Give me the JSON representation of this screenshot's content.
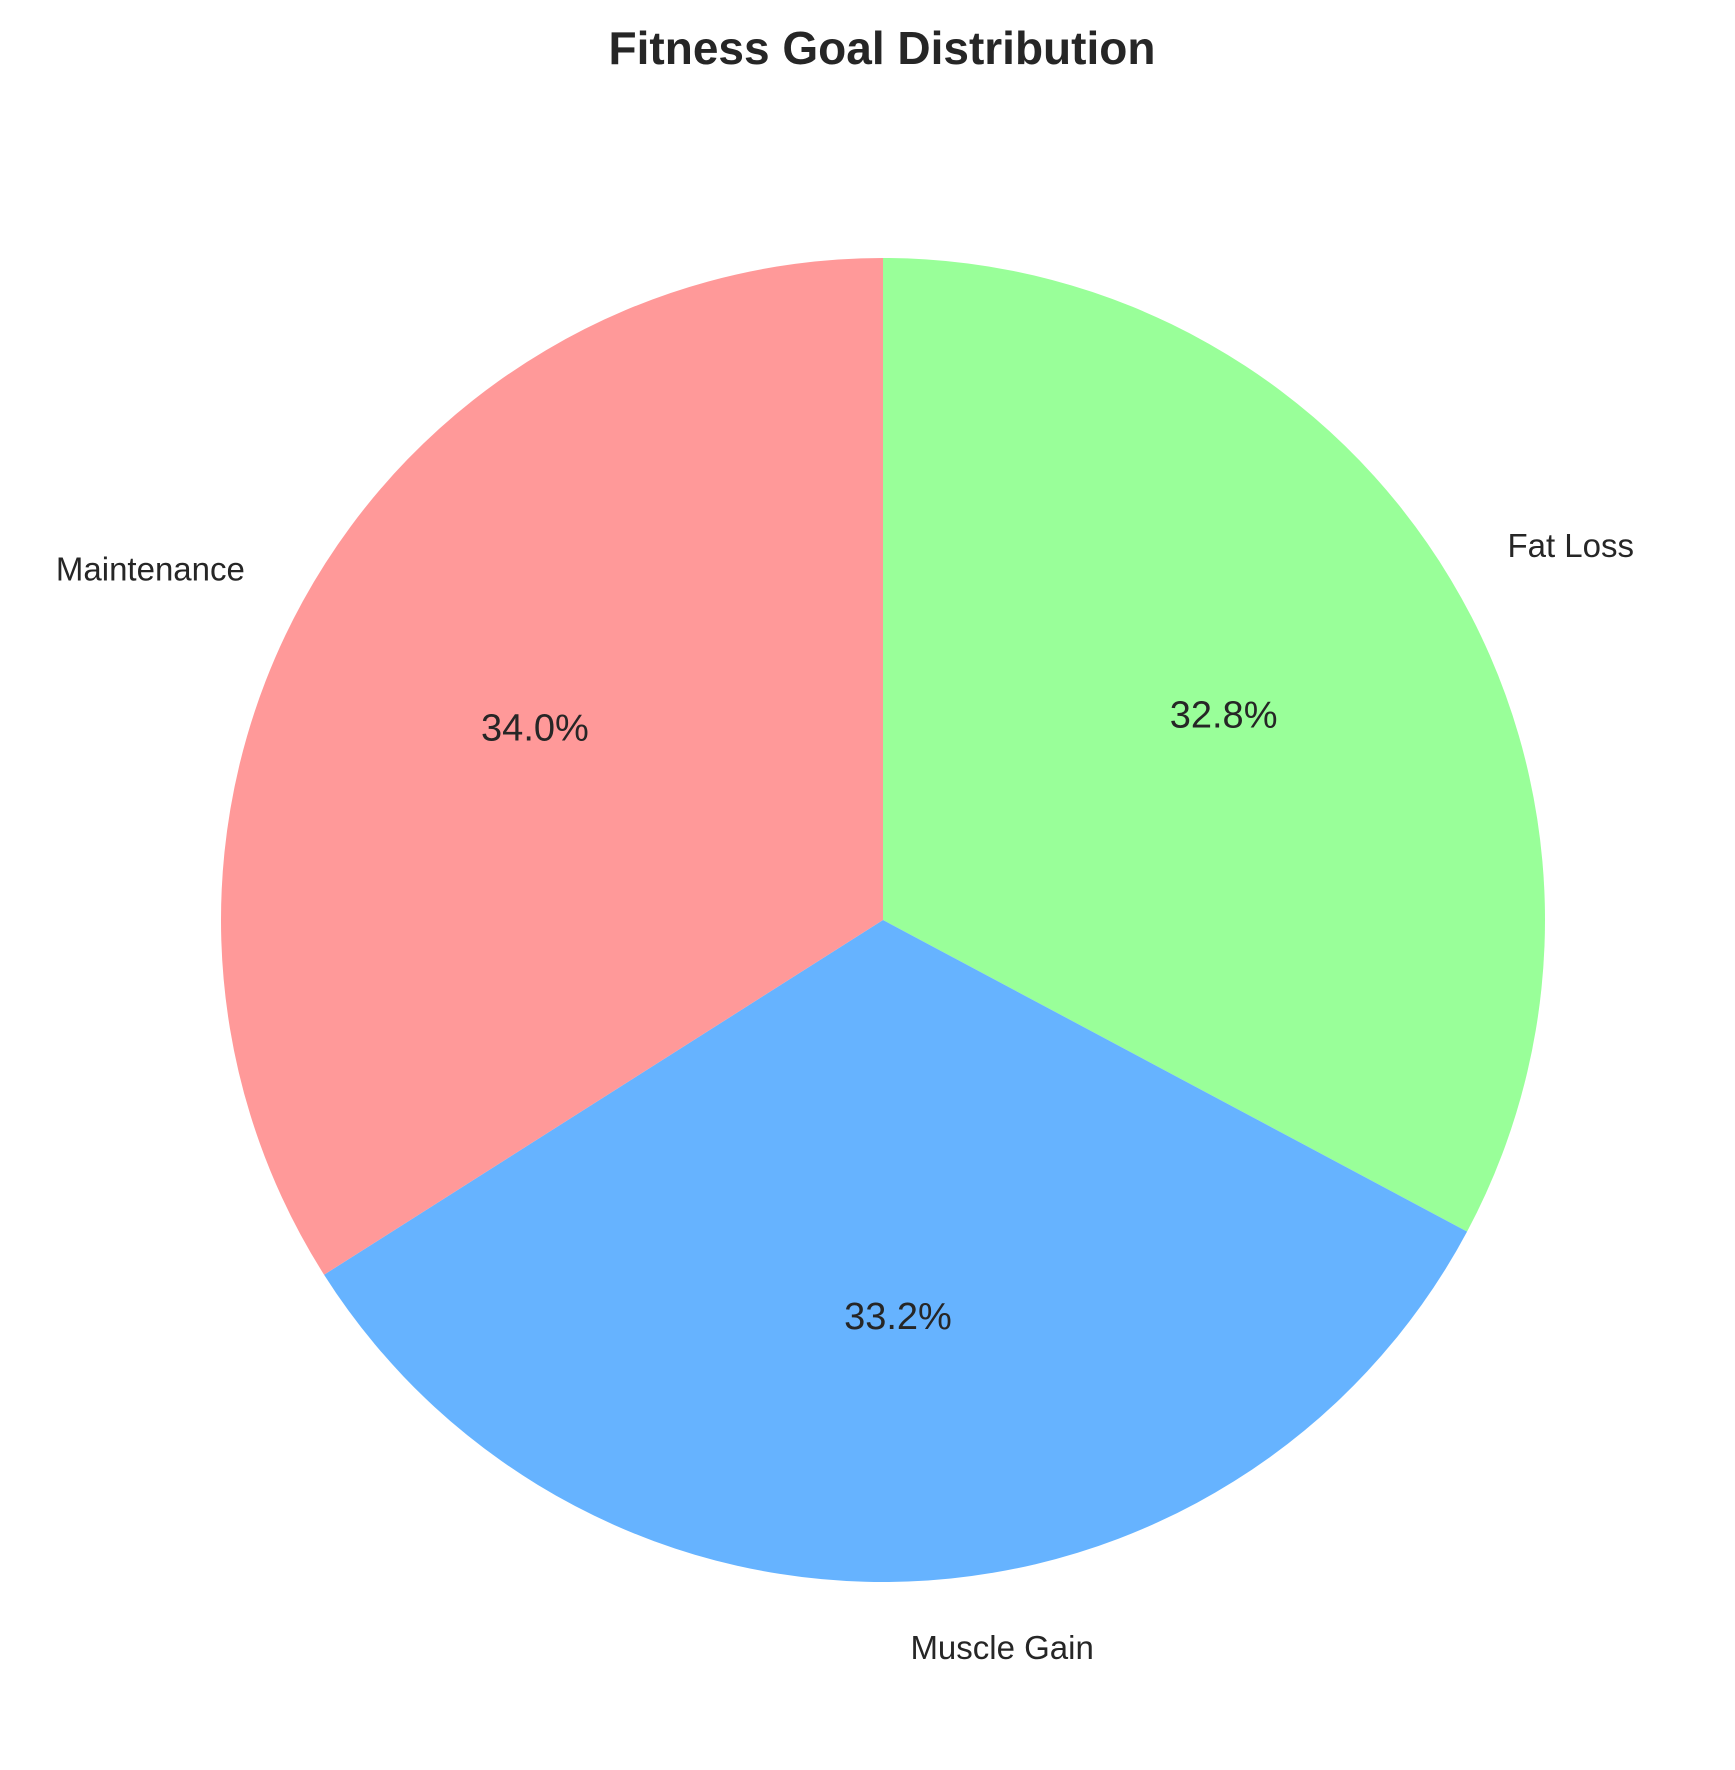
{
  "chart_data": {
    "type": "pie",
    "title": "Fitness Goal Distribution",
    "categories": [
      "Fat Loss",
      "Muscle Gain",
      "Maintenance"
    ],
    "values": [
      32.8,
      33.2,
      34.0
    ],
    "value_labels": [
      "32.8%",
      "33.2%",
      "34.0%"
    ],
    "colors": [
      "#99ff99",
      "#66b3ff",
      "#ff9999"
    ],
    "start_angle_deg": 90,
    "direction": "clockwise",
    "legend": "none"
  }
}
